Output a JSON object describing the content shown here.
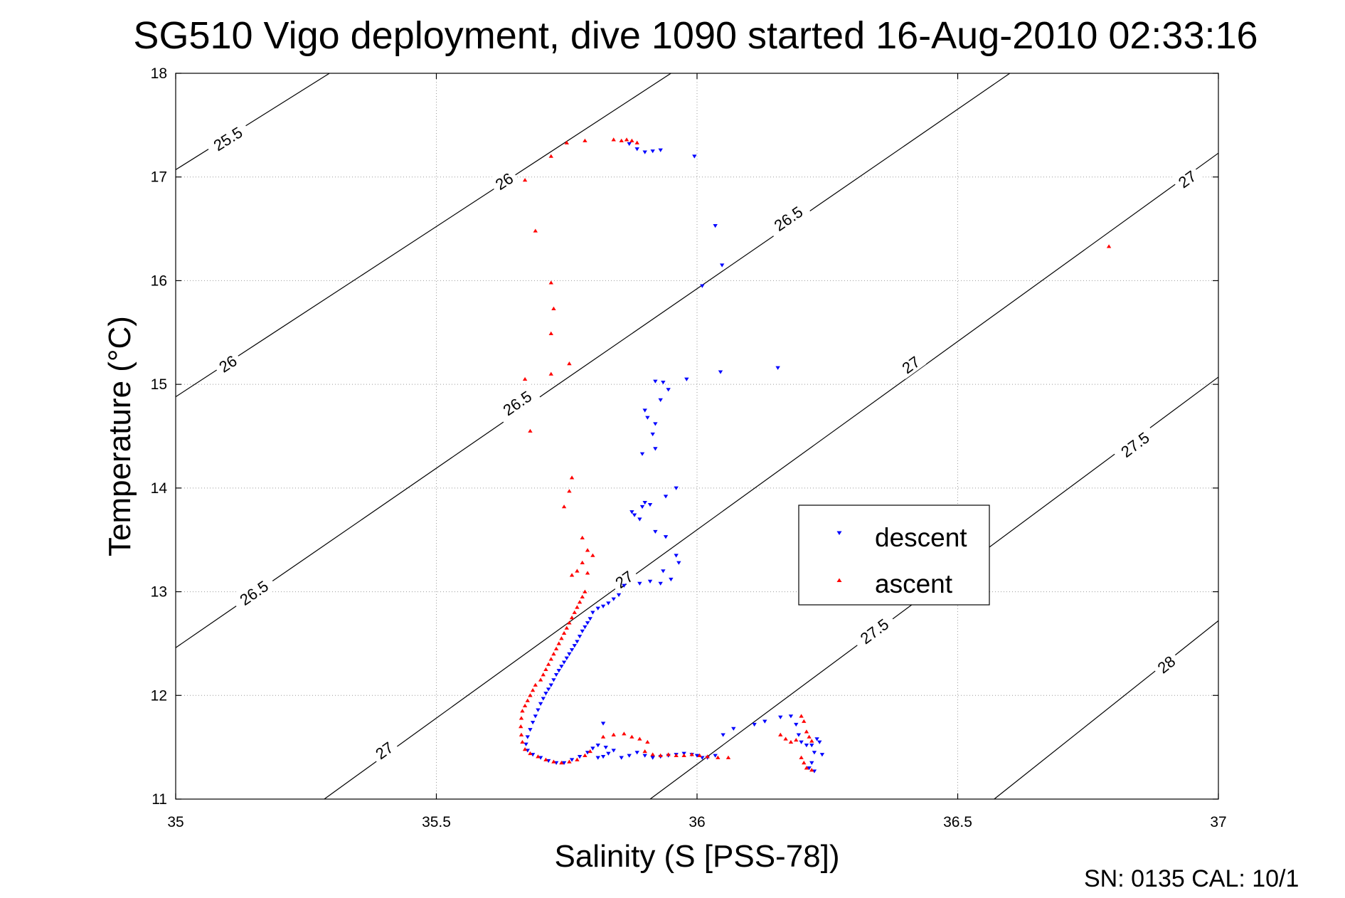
{
  "chart_data": {
    "type": "scatter",
    "title": "SG510 Vigo deployment, dive 1090 started 16-Aug-2010 02:33:16",
    "xlabel": "Salinity (S [PSS-78])",
    "ylabel": "Temperature (°C)",
    "xlim": [
      35,
      37
    ],
    "ylim": [
      11,
      18
    ],
    "x_ticks": [
      "35",
      "35.5",
      "36",
      "36.5",
      "37"
    ],
    "y_ticks": [
      "11",
      "12",
      "13",
      "14",
      "15",
      "16",
      "17",
      "18"
    ],
    "grid": true,
    "legend_position": "center-right",
    "footer": "SN: 0135  CAL: 10/1",
    "contours": [
      {
        "label": "25.5",
        "points": [
          [
            35.0,
            17.07
          ],
          [
            35.295,
            18.0
          ]
        ],
        "label_at": [
          35.1,
          17.37
        ]
      },
      {
        "label": "26",
        "points": [
          [
            35.0,
            14.88
          ],
          [
            35.95,
            18.0
          ]
        ],
        "label_at": [
          35.1,
          15.2
        ]
      },
      {
        "label": "26",
        "points": [
          [
            35.0,
            14.88
          ],
          [
            35.95,
            18.0
          ]
        ],
        "label_at": [
          35.63,
          16.96
        ]
      },
      {
        "label": "26.5",
        "points": [
          [
            35.0,
            12.46
          ],
          [
            36.6,
            18.0
          ]
        ],
        "label_at": [
          35.15,
          12.99
        ]
      },
      {
        "label": "26.5",
        "points": [
          [
            35.0,
            12.46
          ],
          [
            36.6,
            18.0
          ]
        ],
        "label_at": [
          35.655,
          14.82
        ]
      },
      {
        "label": "26.5",
        "points": [
          [
            35.0,
            12.46
          ],
          [
            36.6,
            18.0
          ]
        ],
        "label_at": [
          36.175,
          16.6
        ]
      },
      {
        "label": "27",
        "points": [
          [
            35.285,
            11.0
          ],
          [
            37.0,
            17.23
          ]
        ],
        "label_at": [
          35.4,
          11.47
        ]
      },
      {
        "label": "27",
        "points": [
          [
            35.285,
            11.0
          ],
          [
            37.0,
            17.23
          ]
        ],
        "label_at": [
          35.86,
          13.12
        ]
      },
      {
        "label": "27",
        "points": [
          [
            35.285,
            11.0
          ],
          [
            37.0,
            17.23
          ]
        ],
        "label_at": [
          36.41,
          15.19
        ]
      },
      {
        "label": "27",
        "points": [
          [
            35.285,
            11.0
          ],
          [
            37.0,
            17.23
          ]
        ],
        "label_at": [
          36.94,
          16.98
        ]
      },
      {
        "label": "27.5",
        "points": [
          [
            35.91,
            11.0
          ],
          [
            37.0,
            15.07
          ]
        ],
        "label_at": [
          36.34,
          12.62
        ]
      },
      {
        "label": "27.5",
        "points": [
          [
            35.91,
            11.0
          ],
          [
            37.0,
            15.07
          ]
        ],
        "label_at": [
          36.84,
          14.42
        ]
      },
      {
        "label": "28",
        "points": [
          [
            36.57,
            11.0
          ],
          [
            37.0,
            12.72
          ]
        ],
        "label_at": [
          36.9,
          12.3
        ]
      }
    ],
    "series": [
      {
        "name": "descent",
        "color": "#0000ff",
        "marker": "triangle-down",
        "points": [
          [
            35.87,
            17.32
          ],
          [
            35.885,
            17.27
          ],
          [
            35.9,
            17.24
          ],
          [
            35.915,
            17.25
          ],
          [
            35.93,
            17.26
          ],
          [
            35.995,
            17.2
          ],
          [
            36.035,
            16.53
          ],
          [
            36.048,
            16.15
          ],
          [
            36.01,
            15.95
          ],
          [
            36.045,
            15.12
          ],
          [
            36.155,
            15.16
          ],
          [
            35.98,
            15.05
          ],
          [
            35.92,
            15.03
          ],
          [
            35.935,
            15.02
          ],
          [
            35.945,
            14.95
          ],
          [
            35.93,
            14.85
          ],
          [
            35.9,
            14.75
          ],
          [
            35.905,
            14.68
          ],
          [
            35.92,
            14.62
          ],
          [
            35.915,
            14.52
          ],
          [
            35.92,
            14.38
          ],
          [
            35.895,
            14.33
          ],
          [
            35.96,
            14.0
          ],
          [
            35.94,
            13.92
          ],
          [
            35.9,
            13.86
          ],
          [
            35.91,
            13.84
          ],
          [
            35.895,
            13.82
          ],
          [
            35.875,
            13.77
          ],
          [
            35.88,
            13.74
          ],
          [
            35.89,
            13.7
          ],
          [
            35.92,
            13.58
          ],
          [
            35.94,
            13.53
          ],
          [
            35.96,
            13.35
          ],
          [
            35.965,
            13.28
          ],
          [
            35.935,
            13.2
          ],
          [
            35.91,
            13.1
          ],
          [
            35.89,
            13.08
          ],
          [
            35.86,
            13.06
          ],
          [
            35.93,
            13.08
          ],
          [
            35.95,
            13.12
          ],
          [
            35.85,
            12.97
          ],
          [
            35.84,
            12.93
          ],
          [
            35.83,
            12.89
          ],
          [
            35.82,
            12.86
          ],
          [
            35.81,
            12.84
          ],
          [
            35.8,
            12.8
          ],
          [
            35.795,
            12.74
          ],
          [
            35.79,
            12.7
          ],
          [
            35.785,
            12.66
          ],
          [
            35.78,
            12.62
          ],
          [
            35.775,
            12.57
          ],
          [
            35.77,
            12.52
          ],
          [
            35.765,
            12.48
          ],
          [
            35.76,
            12.44
          ],
          [
            35.755,
            12.4
          ],
          [
            35.75,
            12.36
          ],
          [
            35.745,
            12.32
          ],
          [
            35.74,
            12.28
          ],
          [
            35.735,
            12.24
          ],
          [
            35.73,
            12.2
          ],
          [
            35.725,
            12.15
          ],
          [
            35.72,
            12.1
          ],
          [
            35.715,
            12.06
          ],
          [
            35.71,
            12.02
          ],
          [
            35.705,
            11.97
          ],
          [
            35.7,
            11.92
          ],
          [
            35.695,
            11.86
          ],
          [
            35.69,
            11.8
          ],
          [
            35.685,
            11.74
          ],
          [
            35.68,
            11.67
          ],
          [
            35.675,
            11.6
          ],
          [
            35.672,
            11.53
          ],
          [
            35.675,
            11.47
          ],
          [
            35.685,
            11.43
          ],
          [
            35.7,
            11.4
          ],
          [
            35.715,
            11.37
          ],
          [
            35.73,
            11.35
          ],
          [
            35.745,
            11.35
          ],
          [
            35.76,
            11.38
          ],
          [
            35.775,
            11.41
          ],
          [
            35.79,
            11.45
          ],
          [
            35.8,
            11.49
          ],
          [
            35.81,
            11.52
          ],
          [
            35.825,
            11.5
          ],
          [
            35.84,
            11.47
          ],
          [
            35.83,
            11.44
          ],
          [
            35.82,
            11.41
          ],
          [
            35.81,
            11.4
          ],
          [
            35.82,
            11.73
          ],
          [
            35.855,
            11.4
          ],
          [
            35.87,
            11.42
          ],
          [
            35.885,
            11.45
          ],
          [
            35.9,
            11.42
          ],
          [
            35.915,
            11.4
          ],
          [
            35.93,
            11.41
          ],
          [
            35.945,
            11.42
          ],
          [
            35.96,
            11.43
          ],
          [
            35.975,
            11.44
          ],
          [
            35.99,
            11.43
          ],
          [
            36.0,
            11.42
          ],
          [
            36.01,
            11.4
          ],
          [
            36.02,
            11.4
          ],
          [
            36.035,
            11.42
          ],
          [
            36.05,
            11.62
          ],
          [
            36.07,
            11.68
          ],
          [
            36.11,
            11.72
          ],
          [
            36.13,
            11.75
          ],
          [
            36.16,
            11.79
          ],
          [
            36.18,
            11.8
          ],
          [
            36.19,
            11.72
          ],
          [
            36.195,
            11.62
          ],
          [
            36.2,
            11.55
          ],
          [
            36.21,
            11.52
          ],
          [
            36.22,
            11.52
          ],
          [
            36.23,
            11.58
          ],
          [
            36.235,
            11.55
          ],
          [
            36.225,
            11.45
          ],
          [
            36.22,
            11.35
          ],
          [
            36.215,
            11.3
          ],
          [
            36.225,
            11.27
          ],
          [
            36.24,
            11.43
          ]
        ]
      },
      {
        "name": "ascent",
        "color": "#ff0000",
        "marker": "triangle-up",
        "points": [
          [
            35.72,
            17.2
          ],
          [
            35.75,
            17.33
          ],
          [
            35.785,
            17.35
          ],
          [
            35.84,
            17.36
          ],
          [
            35.855,
            17.35
          ],
          [
            35.865,
            17.36
          ],
          [
            35.875,
            17.35
          ],
          [
            35.885,
            17.33
          ],
          [
            35.67,
            16.97
          ],
          [
            35.69,
            16.48
          ],
          [
            35.72,
            15.98
          ],
          [
            35.725,
            15.73
          ],
          [
            35.72,
            15.49
          ],
          [
            35.755,
            15.2
          ],
          [
            35.72,
            15.1
          ],
          [
            35.67,
            15.05
          ],
          [
            35.68,
            14.55
          ],
          [
            35.76,
            14.1
          ],
          [
            35.755,
            13.97
          ],
          [
            35.745,
            13.82
          ],
          [
            35.78,
            13.52
          ],
          [
            35.79,
            13.4
          ],
          [
            35.8,
            13.35
          ],
          [
            35.78,
            13.28
          ],
          [
            35.77,
            13.2
          ],
          [
            35.79,
            13.18
          ],
          [
            35.76,
            13.16
          ],
          [
            35.785,
            13.0
          ],
          [
            35.78,
            12.95
          ],
          [
            35.775,
            12.9
          ],
          [
            35.77,
            12.85
          ],
          [
            35.765,
            12.8
          ],
          [
            35.76,
            12.75
          ],
          [
            35.755,
            12.7
          ],
          [
            35.75,
            12.65
          ],
          [
            35.745,
            12.6
          ],
          [
            35.74,
            12.55
          ],
          [
            35.735,
            12.5
          ],
          [
            35.73,
            12.45
          ],
          [
            35.725,
            12.4
          ],
          [
            35.72,
            12.35
          ],
          [
            35.715,
            12.3
          ],
          [
            35.71,
            12.25
          ],
          [
            35.705,
            12.2
          ],
          [
            35.7,
            12.15
          ],
          [
            35.69,
            12.1
          ],
          [
            35.685,
            12.05
          ],
          [
            35.68,
            12.0
          ],
          [
            35.675,
            11.95
          ],
          [
            35.67,
            11.9
          ],
          [
            35.665,
            11.85
          ],
          [
            35.663,
            11.78
          ],
          [
            35.662,
            11.7
          ],
          [
            35.663,
            11.62
          ],
          [
            35.665,
            11.55
          ],
          [
            35.67,
            11.48
          ],
          [
            35.68,
            11.44
          ],
          [
            35.695,
            11.41
          ],
          [
            35.71,
            11.38
          ],
          [
            35.725,
            11.36
          ],
          [
            35.74,
            11.35
          ],
          [
            35.755,
            11.36
          ],
          [
            35.77,
            11.38
          ],
          [
            35.785,
            11.42
          ],
          [
            35.795,
            11.46
          ],
          [
            35.82,
            11.6
          ],
          [
            35.84,
            11.62
          ],
          [
            35.86,
            11.63
          ],
          [
            35.875,
            11.6
          ],
          [
            35.89,
            11.58
          ],
          [
            35.905,
            11.55
          ],
          [
            35.9,
            11.46
          ],
          [
            35.915,
            11.43
          ],
          [
            35.93,
            11.42
          ],
          [
            35.945,
            11.43
          ],
          [
            35.96,
            11.42
          ],
          [
            35.975,
            11.42
          ],
          [
            35.99,
            11.43
          ],
          [
            36.005,
            11.42
          ],
          [
            36.02,
            11.41
          ],
          [
            36.04,
            11.4
          ],
          [
            36.06,
            11.4
          ],
          [
            36.16,
            11.62
          ],
          [
            36.17,
            11.58
          ],
          [
            36.18,
            11.55
          ],
          [
            36.19,
            11.57
          ],
          [
            36.2,
            11.8
          ],
          [
            36.205,
            11.75
          ],
          [
            36.21,
            11.65
          ],
          [
            36.215,
            11.6
          ],
          [
            36.22,
            11.56
          ],
          [
            36.2,
            11.4
          ],
          [
            36.205,
            11.35
          ],
          [
            36.21,
            11.3
          ],
          [
            36.22,
            11.28
          ],
          [
            36.79,
            16.33
          ]
        ]
      }
    ]
  }
}
